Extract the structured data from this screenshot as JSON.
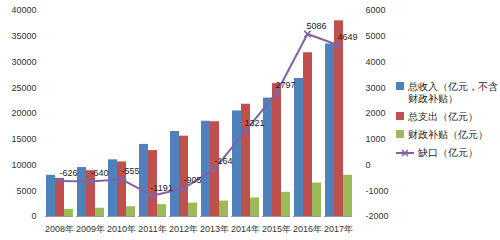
{
  "chart_data": {
    "type": "bar",
    "categories": [
      "2008年",
      "2009年",
      "2010年",
      "2011年",
      "2012年",
      "2013年",
      "2014年",
      "2015年",
      "2016年",
      "2017年"
    ],
    "series": [
      {
        "name": "总收入（亿元，不含财政补贴）",
        "color": "#4f81bd",
        "values": [
          8000,
          9500,
          11000,
          14000,
          16500,
          18500,
          20500,
          23000,
          26800,
          33500
        ]
      },
      {
        "name": "总支出（亿元）",
        "color": "#c0504d",
        "values": [
          7400,
          8900,
          10600,
          12800,
          15600,
          18400,
          21800,
          25800,
          31800,
          38000
        ]
      },
      {
        "name": "财政补贴（亿元）",
        "color": "#9bbb59",
        "values": [
          1400,
          1600,
          1900,
          2300,
          2600,
          3000,
          3600,
          4700,
          6500,
          8000
        ]
      },
      {
        "name": "缺口（亿元）",
        "type": "line",
        "axis": "y2",
        "color": "#8064a2",
        "marker": "x",
        "data_labels": true,
        "values": [
          -626,
          -640,
          -555,
          -1191,
          -905,
          -164,
          1321,
          2797,
          5086,
          4649
        ]
      }
    ],
    "ylim": [
      0,
      40000
    ],
    "yticks": [
      0,
      5000,
      10000,
      15000,
      20000,
      25000,
      30000,
      35000,
      40000
    ],
    "y2lim": [
      -2000,
      6000
    ],
    "y2ticks": [
      -2000,
      -1000,
      0,
      1000,
      2000,
      3000,
      4000,
      5000,
      6000
    ],
    "grid": false,
    "legend": "right"
  }
}
